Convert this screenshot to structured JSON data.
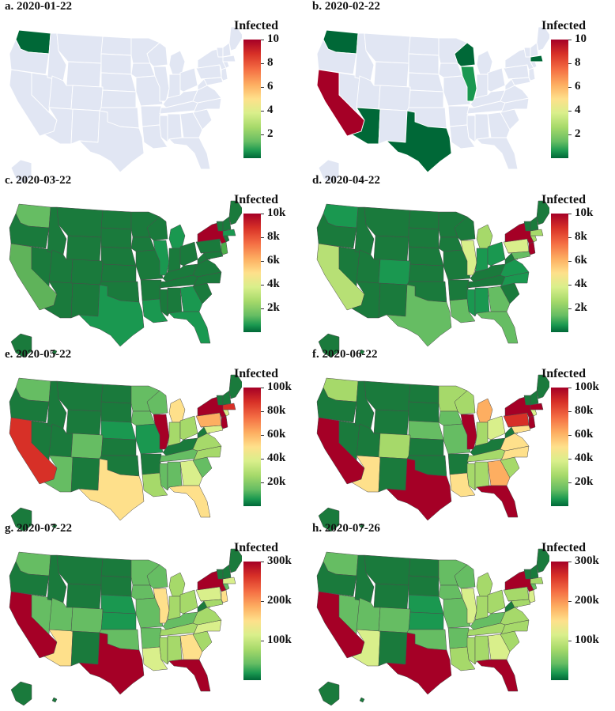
{
  "figure": {
    "legend_title": "Infected",
    "color_scale": [
      "#006837",
      "#1a9850",
      "#66bd63",
      "#a6d96a",
      "#d9ef8b",
      "#fee08b",
      "#fdae61",
      "#f46d43",
      "#d73027",
      "#a50026"
    ],
    "no_data_color": "#e1e6f3",
    "border_color": "#4a4a4a"
  },
  "panels": [
    {
      "label": "a.  2020-01-22",
      "ticks": [
        "10",
        "8",
        "6",
        "4",
        "2"
      ],
      "tick_values": [
        10,
        8,
        6,
        4,
        2
      ],
      "scale_max": 10,
      "mode": "sparse",
      "states": {
        "WA": "#006837"
      }
    },
    {
      "label": "b.  2020-02-22",
      "ticks": [
        "10",
        "8",
        "6",
        "4",
        "2"
      ],
      "tick_values": [
        10,
        8,
        6,
        4,
        2
      ],
      "scale_max": 10,
      "mode": "sparse",
      "states": {
        "WA": "#006837",
        "CA": "#a50026",
        "AZ": "#006837",
        "TX": "#006837",
        "WI": "#006837",
        "IL": "#1a9850",
        "MA": "#006837"
      }
    },
    {
      "label": "c.  2020-03-22",
      "ticks": [
        "10k",
        "8k",
        "6k",
        "4k",
        "2k"
      ],
      "tick_values": [
        10,
        8,
        6,
        4,
        2
      ],
      "scale_max": 10,
      "mode": "full",
      "default": "#1a7a3c",
      "states": {
        "NY": "#a50026",
        "CA": "#5fb35a",
        "WA": "#66bd63",
        "IL": "#1a9850",
        "MI": "#1a9850",
        "FL": "#1a9850",
        "NJ": "#4daf4a",
        "TX": "#1a9850",
        "LA": "#1a9850",
        "GA": "#1a9850",
        "MA": "#1a9850"
      }
    },
    {
      "label": "d.  2020-04-22",
      "ticks": [
        "10k",
        "8k",
        "6k",
        "4k",
        "2k"
      ],
      "tick_values": [
        10,
        8,
        6,
        4,
        2
      ],
      "scale_max": 10,
      "mode": "full",
      "default": "#1a7a3c",
      "states": {
        "NY": "#a50026",
        "NJ": "#a50026",
        "CA": "#b7e075",
        "MI": "#a6d96a",
        "IL": "#d9ef8b",
        "PA": "#d9ef8b",
        "MA": "#a6d96a",
        "CT": "#a6d96a",
        "FL": "#66bd63",
        "GA": "#66bd63",
        "TX": "#66bd63",
        "LA": "#66bd63",
        "WA": "#1a9850",
        "CO": "#1a9850",
        "IN": "#1a9850",
        "OH": "#1a9850",
        "MD": "#66bd63",
        "VA": "#1a9850",
        "MS": "#1a9850",
        "AL": "#1a9850",
        "NC": "#1a9850"
      }
    },
    {
      "label": "e.  2020-05-22",
      "ticks": [
        "100k",
        "80k",
        "60k",
        "40k",
        "20k"
      ],
      "tick_values": [
        100,
        80,
        60,
        40,
        20
      ],
      "scale_max": 100,
      "mode": "full",
      "default": "#1a7a3c",
      "states": {
        "NY": "#a50026",
        "NJ": "#a50026",
        "IL": "#a50026",
        "MA": "#d73027",
        "CA": "#d73027",
        "PA": "#fdae61",
        "TX": "#fee08b",
        "FL": "#fee08b",
        "MI": "#fee08b",
        "GA": "#d9ef8b",
        "MD": "#d9ef8b",
        "CT": "#d9ef8b",
        "LA": "#a6d96a",
        "VA": "#a6d96a",
        "OH": "#a6d96a",
        "IN": "#a6d96a",
        "NC": "#a6d96a",
        "CO": "#66bd63",
        "WA": "#66bd63",
        "MN": "#66bd63",
        "WI": "#66bd63",
        "AZ": "#66bd63",
        "TN": "#66bd63",
        "MS": "#66bd63",
        "AL": "#66bd63",
        "IA": "#66bd63",
        "NE": "#1a9850",
        "MO": "#1a9850",
        "SC": "#66bd63"
      }
    },
    {
      "label": "f.  2020-06-22",
      "ticks": [
        "100k",
        "80k",
        "60k",
        "40k",
        "20k"
      ],
      "tick_values": [
        100,
        80,
        60,
        40,
        20
      ],
      "scale_max": 100,
      "mode": "full",
      "default": "#1a7a3c",
      "states": {
        "NY": "#a50026",
        "NJ": "#a50026",
        "IL": "#a50026",
        "CA": "#a50026",
        "TX": "#a50026",
        "FL": "#a50026",
        "MA": "#a50026",
        "PA": "#d73027",
        "GA": "#fdae61",
        "MI": "#fdae61",
        "AZ": "#fee08b",
        "NC": "#fee08b",
        "LA": "#fee08b",
        "VA": "#fee08b",
        "MD": "#fee08b",
        "OH": "#d9ef8b",
        "IN": "#a6d96a",
        "TN": "#a6d96a",
        "AL": "#a6d96a",
        "MS": "#a6d96a",
        "SC": "#a6d96a",
        "WA": "#a6d96a",
        "MN": "#a6d96a",
        "WI": "#a6d96a",
        "CO": "#a6d96a",
        "IA": "#66bd63",
        "CT": "#d9ef8b",
        "NE": "#66bd63",
        "MO": "#66bd63"
      }
    },
    {
      "label": "g.  2020-07-22",
      "ticks": [
        "300k",
        "200k",
        "100k"
      ],
      "tick_values": [
        300,
        200,
        100
      ],
      "scale_max": 300,
      "mode": "full",
      "default": "#1a7a3c",
      "states": {
        "CA": "#a50026",
        "TX": "#a50026",
        "FL": "#a50026",
        "NY": "#a50026",
        "NJ": "#fee08b",
        "IL": "#fee08b",
        "AZ": "#fee08b",
        "GA": "#fee08b",
        "MA": "#d9ef8b",
        "PA": "#d9ef8b",
        "NC": "#d9ef8b",
        "LA": "#d9ef8b",
        "TN": "#a6d96a",
        "AL": "#a6d96a",
        "SC": "#a6d96a",
        "VA": "#a6d96a",
        "OH": "#a6d96a",
        "MI": "#a6d96a",
        "MD": "#a6d96a",
        "IN": "#a6d96a",
        "MS": "#a6d96a",
        "WA": "#66bd63",
        "MN": "#66bd63",
        "WI": "#66bd63",
        "CO": "#66bd63",
        "IA": "#66bd63",
        "MO": "#66bd63",
        "CT": "#66bd63",
        "NV": "#66bd63",
        "UT": "#66bd63",
        "OK": "#66bd63",
        "AR": "#66bd63",
        "KY": "#66bd63",
        "NE": "#1a9850",
        "KS": "#1a9850"
      }
    },
    {
      "label": "h.  2020-07-26",
      "ticks": [
        "300k",
        "200k",
        "100k"
      ],
      "tick_values": [
        300,
        200,
        100
      ],
      "scale_max": 300,
      "mode": "full",
      "default": "#1a7a3c",
      "states": {
        "CA": "#a50026",
        "TX": "#a50026",
        "FL": "#a50026",
        "NY": "#a50026",
        "NJ": "#d9ef8b",
        "IL": "#d9ef8b",
        "AZ": "#d9ef8b",
        "GA": "#d9ef8b",
        "MA": "#a6d96a",
        "PA": "#a6d96a",
        "NC": "#a6d96a",
        "LA": "#a6d96a",
        "TN": "#a6d96a",
        "AL": "#a6d96a",
        "SC": "#a6d96a",
        "VA": "#a6d96a",
        "OH": "#a6d96a",
        "MI": "#a6d96a",
        "MD": "#a6d96a",
        "IN": "#a6d96a",
        "MS": "#a6d96a",
        "WA": "#66bd63",
        "MN": "#66bd63",
        "WI": "#66bd63",
        "CO": "#66bd63",
        "IA": "#66bd63",
        "MO": "#66bd63",
        "CT": "#66bd63",
        "NV": "#66bd63",
        "UT": "#66bd63",
        "OK": "#66bd63",
        "AR": "#66bd63",
        "KY": "#66bd63",
        "NE": "#1a9850",
        "KS": "#1a9850"
      }
    }
  ]
}
